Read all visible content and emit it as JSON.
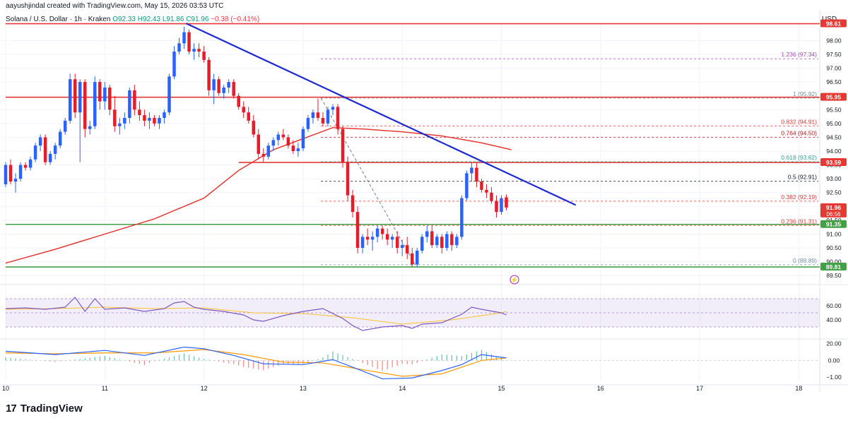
{
  "header": {
    "author_line": "aayushjindal created with TradingView.com, May 15, 2026 03:53 UTC"
  },
  "symbol": {
    "name": "Solana / U.S. Dollar · 1h · Kraken",
    "open": "O92.33",
    "high": "H92.43",
    "low": "L91.86",
    "close": "C91.96",
    "change": "−0.38 (−0.41%)"
  },
  "currency": "USD",
  "logo": {
    "mark": "17",
    "text": "TradingView"
  },
  "colors": {
    "bull": "#2962ff",
    "bear": "#e51d2b",
    "ma": "#e53935",
    "trend": "#1e2bd1",
    "support": "#4caf50",
    "resistance": "#e53935",
    "rsi": "#7e57c2",
    "macd": "#2962ff",
    "signal": "#ff9800"
  },
  "chart_data": {
    "type": "candlestick",
    "x_ticks": [
      "10",
      "11",
      "12",
      "13",
      "14",
      "15",
      "16",
      "17",
      "18"
    ],
    "y_ticks": [
      "98.00",
      "97.50",
      "97.00",
      "96.50",
      "96.00",
      "95.50",
      "95.00",
      "94.50",
      "94.00",
      "93.50",
      "93.00",
      "92.50",
      "92.00",
      "91.50",
      "91.00",
      "90.50",
      "90.00",
      "89.50"
    ],
    "ylim": [
      89.3,
      98.7
    ],
    "price_labels": [
      {
        "text": "98.61",
        "value": 98.61,
        "color": "#e53935"
      },
      {
        "text": "95.95",
        "value": 95.95,
        "color": "#e53935"
      },
      {
        "text": "93.59",
        "value": 93.59,
        "color": "#e53935"
      },
      {
        "text": "91.96",
        "value": 91.96,
        "color": "#e53935",
        "sub": "06:56"
      },
      {
        "text": "91.35",
        "value": 91.35,
        "color": "#43a047"
      },
      {
        "text": "89.81",
        "value": 89.81,
        "color": "#43a047"
      }
    ],
    "horizontal_levels": [
      {
        "value": 98.61,
        "color": "#e53935",
        "x_start_day": 10.0
      },
      {
        "value": 95.95,
        "color": "#e53935",
        "x_start_day": 10.0
      },
      {
        "value": 93.59,
        "color": "#e53935",
        "x_start_day": 12.35
      },
      {
        "value": 91.35,
        "color": "#43a047",
        "x_start_day": 10.0
      },
      {
        "value": 89.81,
        "color": "#43a047",
        "x_start_day": 10.0
      }
    ],
    "fib_levels": [
      {
        "label": "1.236 (97.34)",
        "value": 97.34,
        "color": "#ab47bc"
      },
      {
        "label": "1 (95.92)",
        "value": 95.92,
        "color": "#78909c"
      },
      {
        "label": "0.832 (94.91)",
        "value": 94.91,
        "color": "#e53935"
      },
      {
        "label": "0.764 (94.50)",
        "value": 94.5,
        "color": "#b71c1c"
      },
      {
        "label": "0.618 (93.62)",
        "value": 93.62,
        "color": "#26a69a"
      },
      {
        "label": "0.5 (92.91)",
        "value": 92.91,
        "color": "#131722"
      },
      {
        "label": "0.382 (92.19)",
        "value": 92.19,
        "color": "#e53935"
      },
      {
        "label": "0.236 (91.31)",
        "value": 91.31,
        "color": "#e53935"
      },
      {
        "label": "0 (89.89)",
        "value": 89.89,
        "color": "#78909c"
      }
    ],
    "trend_line": {
      "from": [
        11.82,
        98.62
      ],
      "to": [
        15.75,
        92.05
      ]
    },
    "fib_diagonal": {
      "from": [
        13.18,
        95.92
      ],
      "to": [
        14.13,
        89.89
      ]
    },
    "ma_line": [
      [
        10.0,
        89.95
      ],
      [
        10.5,
        90.45
      ],
      [
        11.0,
        91.0
      ],
      [
        11.5,
        91.55
      ],
      [
        12.0,
        92.3
      ],
      [
        12.35,
        93.3
      ],
      [
        12.7,
        94.05
      ],
      [
        13.0,
        94.45
      ],
      [
        13.3,
        94.85
      ],
      [
        13.6,
        94.8
      ],
      [
        14.0,
        94.7
      ],
      [
        14.4,
        94.55
      ],
      [
        14.8,
        94.3
      ],
      [
        15.1,
        94.05
      ]
    ],
    "candles": [
      [
        10.0,
        92.8,
        93.6,
        92.7,
        93.5
      ],
      [
        10.05,
        93.5,
        93.7,
        92.8,
        92.9
      ],
      [
        10.1,
        92.9,
        93.2,
        92.5,
        93.0
      ],
      [
        10.15,
        93.0,
        93.6,
        92.9,
        93.5
      ],
      [
        10.2,
        93.5,
        93.6,
        93.3,
        93.4
      ],
      [
        10.25,
        93.4,
        93.8,
        93.3,
        93.7
      ],
      [
        10.3,
        93.7,
        94.3,
        93.6,
        94.2
      ],
      [
        10.35,
        94.2,
        94.6,
        94.0,
        94.5
      ],
      [
        10.4,
        94.5,
        94.6,
        93.5,
        93.6
      ],
      [
        10.45,
        93.6,
        94.0,
        93.5,
        93.9
      ],
      [
        10.5,
        93.9,
        94.3,
        93.7,
        94.2
      ],
      [
        10.55,
        94.2,
        94.8,
        94.1,
        94.7
      ],
      [
        10.6,
        94.7,
        95.2,
        94.6,
        95.1
      ],
      [
        10.65,
        95.1,
        96.8,
        95.0,
        96.6
      ],
      [
        10.7,
        96.6,
        96.8,
        95.2,
        95.4
      ],
      [
        10.75,
        95.4,
        96.6,
        93.6,
        96.5
      ],
      [
        10.8,
        96.5,
        96.6,
        94.5,
        94.8
      ],
      [
        10.85,
        94.8,
        95.1,
        94.6,
        94.9
      ],
      [
        10.9,
        94.9,
        96.7,
        94.8,
        96.5
      ],
      [
        10.95,
        96.5,
        96.6,
        95.5,
        95.8
      ],
      [
        11.0,
        95.8,
        96.5,
        95.5,
        96.3
      ],
      [
        11.05,
        96.3,
        96.4,
        95.3,
        95.5
      ],
      [
        11.1,
        95.5,
        96.0,
        94.7,
        94.9
      ],
      [
        11.15,
        94.9,
        95.2,
        94.6,
        95.0
      ],
      [
        11.2,
        95.0,
        95.4,
        94.8,
        95.2
      ],
      [
        11.25,
        95.2,
        96.3,
        95.0,
        96.2
      ],
      [
        11.3,
        96.2,
        96.4,
        95.3,
        95.5
      ],
      [
        11.35,
        95.5,
        95.8,
        95.1,
        95.3
      ],
      [
        11.4,
        95.3,
        95.5,
        94.9,
        95.1
      ],
      [
        11.45,
        95.1,
        95.4,
        94.8,
        95.2
      ],
      [
        11.5,
        95.2,
        95.3,
        94.9,
        95.0
      ],
      [
        11.55,
        95.0,
        95.3,
        94.8,
        95.2
      ],
      [
        11.6,
        95.2,
        95.5,
        95.0,
        95.4
      ],
      [
        11.65,
        95.4,
        96.8,
        95.3,
        96.7
      ],
      [
        11.7,
        96.7,
        97.8,
        96.6,
        97.6
      ],
      [
        11.75,
        97.6,
        98.1,
        97.5,
        97.9
      ],
      [
        11.8,
        97.9,
        98.5,
        97.7,
        98.3
      ],
      [
        11.85,
        98.3,
        98.4,
        97.5,
        97.6
      ],
      [
        11.9,
        97.6,
        97.9,
        97.3,
        97.7
      ],
      [
        11.95,
        97.7,
        97.9,
        97.4,
        97.6
      ],
      [
        12.0,
        97.6,
        97.8,
        97.2,
        97.3
      ],
      [
        12.05,
        97.3,
        97.4,
        96.0,
        96.2
      ],
      [
        12.1,
        96.2,
        96.8,
        95.7,
        96.6
      ],
      [
        12.15,
        96.6,
        96.7,
        96.0,
        96.1
      ],
      [
        12.2,
        96.1,
        96.4,
        95.9,
        96.3
      ],
      [
        12.25,
        96.3,
        96.6,
        96.1,
        96.5
      ],
      [
        12.3,
        96.5,
        96.6,
        95.9,
        96.0
      ],
      [
        12.35,
        96.0,
        96.1,
        95.5,
        95.6
      ],
      [
        12.4,
        95.6,
        95.8,
        95.2,
        95.4
      ],
      [
        12.45,
        95.4,
        95.6,
        95.0,
        95.1
      ],
      [
        12.5,
        95.1,
        95.3,
        94.5,
        94.6
      ],
      [
        12.55,
        94.6,
        94.8,
        93.7,
        93.9
      ],
      [
        12.6,
        93.9,
        94.1,
        93.6,
        93.8
      ],
      [
        12.65,
        93.8,
        94.3,
        93.7,
        94.2
      ],
      [
        12.7,
        94.2,
        94.5,
        94.0,
        94.4
      ],
      [
        12.75,
        94.4,
        94.7,
        94.2,
        94.6
      ],
      [
        12.8,
        94.6,
        94.8,
        94.4,
        94.5
      ],
      [
        12.85,
        94.5,
        94.6,
        94.1,
        94.2
      ],
      [
        12.9,
        94.2,
        94.4,
        93.9,
        94.0
      ],
      [
        12.95,
        94.0,
        94.3,
        93.8,
        94.1
      ],
      [
        13.0,
        94.1,
        94.9,
        94.0,
        94.8
      ],
      [
        13.05,
        94.8,
        95.3,
        94.7,
        95.2
      ],
      [
        13.1,
        95.2,
        95.5,
        95.0,
        95.4
      ],
      [
        13.15,
        95.4,
        95.9,
        95.1,
        95.2
      ],
      [
        13.2,
        95.2,
        95.4,
        94.9,
        95.0
      ],
      [
        13.25,
        95.0,
        95.6,
        94.9,
        95.5
      ],
      [
        13.3,
        95.5,
        95.7,
        95.3,
        95.6
      ],
      [
        13.35,
        95.6,
        95.7,
        94.6,
        94.8
      ],
      [
        13.4,
        94.8,
        94.9,
        93.4,
        93.6
      ],
      [
        13.45,
        93.6,
        93.8,
        92.2,
        92.4
      ],
      [
        13.5,
        92.4,
        92.6,
        91.6,
        91.8
      ],
      [
        13.55,
        91.8,
        92.0,
        90.3,
        90.5
      ],
      [
        13.6,
        90.5,
        91.0,
        90.3,
        90.9
      ],
      [
        13.65,
        90.9,
        91.2,
        90.6,
        90.8
      ],
      [
        13.7,
        90.8,
        91.1,
        90.4,
        90.9
      ],
      [
        13.75,
        90.9,
        91.3,
        90.7,
        91.2
      ],
      [
        13.8,
        91.2,
        91.3,
        90.8,
        91.0
      ],
      [
        13.85,
        91.0,
        91.2,
        90.6,
        90.8
      ],
      [
        13.9,
        90.8,
        91.0,
        90.5,
        90.9
      ],
      [
        13.95,
        90.9,
        91.1,
        90.3,
        90.5
      ],
      [
        14.0,
        90.5,
        90.8,
        90.2,
        90.6
      ],
      [
        14.05,
        90.6,
        90.9,
        90.1,
        90.3
      ],
      [
        14.1,
        90.3,
        90.5,
        89.8,
        89.9
      ],
      [
        14.15,
        89.9,
        90.5,
        89.8,
        90.4
      ],
      [
        14.2,
        90.4,
        91.0,
        90.3,
        90.9
      ],
      [
        14.25,
        90.9,
        91.3,
        90.7,
        91.1
      ],
      [
        14.3,
        91.1,
        91.3,
        90.5,
        90.6
      ],
      [
        14.35,
        90.6,
        91.0,
        90.5,
        90.9
      ],
      [
        14.4,
        90.9,
        91.0,
        90.3,
        90.5
      ],
      [
        14.45,
        90.5,
        91.1,
        90.4,
        91.0
      ],
      [
        14.5,
        91.0,
        91.1,
        90.4,
        90.6
      ],
      [
        14.55,
        90.6,
        91.0,
        90.5,
        90.9
      ],
      [
        14.6,
        90.9,
        92.4,
        90.8,
        92.3
      ],
      [
        14.65,
        92.3,
        93.3,
        92.2,
        93.2
      ],
      [
        14.7,
        93.2,
        93.6,
        92.9,
        93.4
      ],
      [
        14.75,
        93.4,
        93.6,
        92.7,
        92.9
      ],
      [
        14.8,
        92.9,
        93.0,
        92.5,
        92.6
      ],
      [
        14.85,
        92.6,
        92.8,
        92.3,
        92.5
      ],
      [
        14.9,
        92.5,
        92.7,
        92.1,
        92.2
      ],
      [
        14.95,
        92.2,
        92.4,
        91.6,
        91.8
      ],
      [
        15.0,
        91.8,
        92.4,
        91.7,
        92.3
      ],
      [
        15.05,
        92.33,
        92.43,
        91.86,
        91.96
      ]
    ],
    "rsi": {
      "y_ticks": [
        "60.00",
        "40.00"
      ],
      "ylim": [
        15,
        85
      ],
      "band": [
        30,
        70
      ],
      "values": [
        [
          10.0,
          56
        ],
        [
          10.2,
          57
        ],
        [
          10.4,
          55
        ],
        [
          10.6,
          58
        ],
        [
          10.7,
          72
        ],
        [
          10.8,
          52
        ],
        [
          10.9,
          70
        ],
        [
          11.0,
          55
        ],
        [
          11.2,
          57
        ],
        [
          11.4,
          52
        ],
        [
          11.6,
          56
        ],
        [
          11.7,
          64
        ],
        [
          11.8,
          66
        ],
        [
          11.9,
          58
        ],
        [
          12.0,
          55
        ],
        [
          12.2,
          52
        ],
        [
          12.4,
          47
        ],
        [
          12.5,
          40
        ],
        [
          12.6,
          38
        ],
        [
          12.8,
          46
        ],
        [
          13.0,
          52
        ],
        [
          13.2,
          56
        ],
        [
          13.4,
          42
        ],
        [
          13.5,
          32
        ],
        [
          13.6,
          25
        ],
        [
          13.8,
          30
        ],
        [
          14.0,
          32
        ],
        [
          14.1,
          28
        ],
        [
          14.2,
          34
        ],
        [
          14.4,
          36
        ],
        [
          14.6,
          48
        ],
        [
          14.7,
          58
        ],
        [
          14.8,
          55
        ],
        [
          15.0,
          50
        ],
        [
          15.05,
          47
        ]
      ],
      "ma": [
        [
          10.0,
          55
        ],
        [
          10.5,
          56
        ],
        [
          11.0,
          58
        ],
        [
          11.5,
          56
        ],
        [
          12.0,
          57
        ],
        [
          12.5,
          50
        ],
        [
          13.0,
          49
        ],
        [
          13.5,
          43
        ],
        [
          14.0,
          34
        ],
        [
          14.5,
          40
        ],
        [
          15.0,
          50
        ],
        [
          15.05,
          52
        ]
      ]
    },
    "macd": {
      "y_ticks": [
        "20.00",
        "0.00",
        "−1.00"
      ],
      "ylim": [
        -1.25,
        1.2
      ],
      "macd_line": [
        [
          10.0,
          0.55
        ],
        [
          10.5,
          0.35
        ],
        [
          10.8,
          0.5
        ],
        [
          11.0,
          0.6
        ],
        [
          11.4,
          0.3
        ],
        [
          11.8,
          0.8
        ],
        [
          12.0,
          0.7
        ],
        [
          12.3,
          0.3
        ],
        [
          12.6,
          -0.2
        ],
        [
          13.0,
          -0.25
        ],
        [
          13.3,
          0.05
        ],
        [
          13.5,
          -0.4
        ],
        [
          13.8,
          -1.1
        ],
        [
          14.1,
          -1.05
        ],
        [
          14.4,
          -0.6
        ],
        [
          14.6,
          -0.25
        ],
        [
          14.8,
          0.35
        ],
        [
          15.05,
          0.15
        ]
      ],
      "signal_line": [
        [
          10.0,
          0.45
        ],
        [
          10.5,
          0.4
        ],
        [
          11.0,
          0.45
        ],
        [
          11.5,
          0.45
        ],
        [
          12.0,
          0.65
        ],
        [
          12.4,
          0.35
        ],
        [
          12.8,
          -0.1
        ],
        [
          13.2,
          -0.15
        ],
        [
          13.6,
          -0.55
        ],
        [
          14.0,
          -0.95
        ],
        [
          14.4,
          -0.8
        ],
        [
          14.8,
          0.0
        ],
        [
          15.05,
          0.15
        ]
      ]
    }
  }
}
